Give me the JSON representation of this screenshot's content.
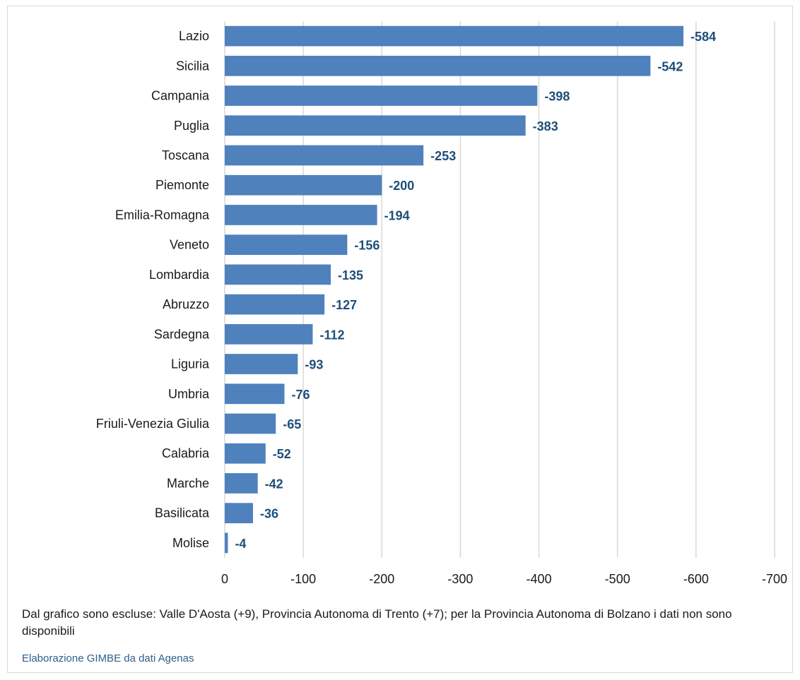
{
  "chart_data": {
    "type": "bar",
    "orientation": "horizontal",
    "categories": [
      "Lazio",
      "Sicilia",
      "Campania",
      "Puglia",
      "Toscana",
      "Piemonte",
      "Emilia-Romagna",
      "Veneto",
      "Lombardia",
      "Abruzzo",
      "Sardegna",
      "Liguria",
      "Umbria",
      "Friuli-Venezia Giulia",
      "Calabria",
      "Marche",
      "Basilicata",
      "Molise"
    ],
    "values": [
      -584,
      -542,
      -398,
      -383,
      -253,
      -200,
      -194,
      -156,
      -135,
      -127,
      -112,
      -93,
      -76,
      -65,
      -52,
      -42,
      -36,
      -4
    ],
    "data_labels": [
      "-584",
      "-542",
      "-398",
      "-383",
      "-253",
      "-200",
      "-194",
      "-156",
      "-135",
      "-127",
      "-112",
      "-93",
      "-76",
      "-65",
      "-52",
      "-42",
      "-36",
      "-4"
    ],
    "x_ticks": [
      "0",
      "-100",
      "-200",
      "-300",
      "-400",
      "-500",
      "-600",
      "-700"
    ],
    "xlim": [
      0,
      -700
    ],
    "x_reversed": true,
    "grid": "vertical",
    "legend": "none",
    "bar_color": "#4f81bd",
    "label_color": "#1f4e79",
    "grid_color": "#d9d9d9"
  },
  "footer": {
    "note": "Dal grafico sono escluse: Valle D'Aosta (+9), Provincia Autonoma di Trento (+7); per la Provincia Autonoma di Bolzano i dati non sono disponibili",
    "source": "Elaborazione GIMBE da dati Agenas"
  }
}
